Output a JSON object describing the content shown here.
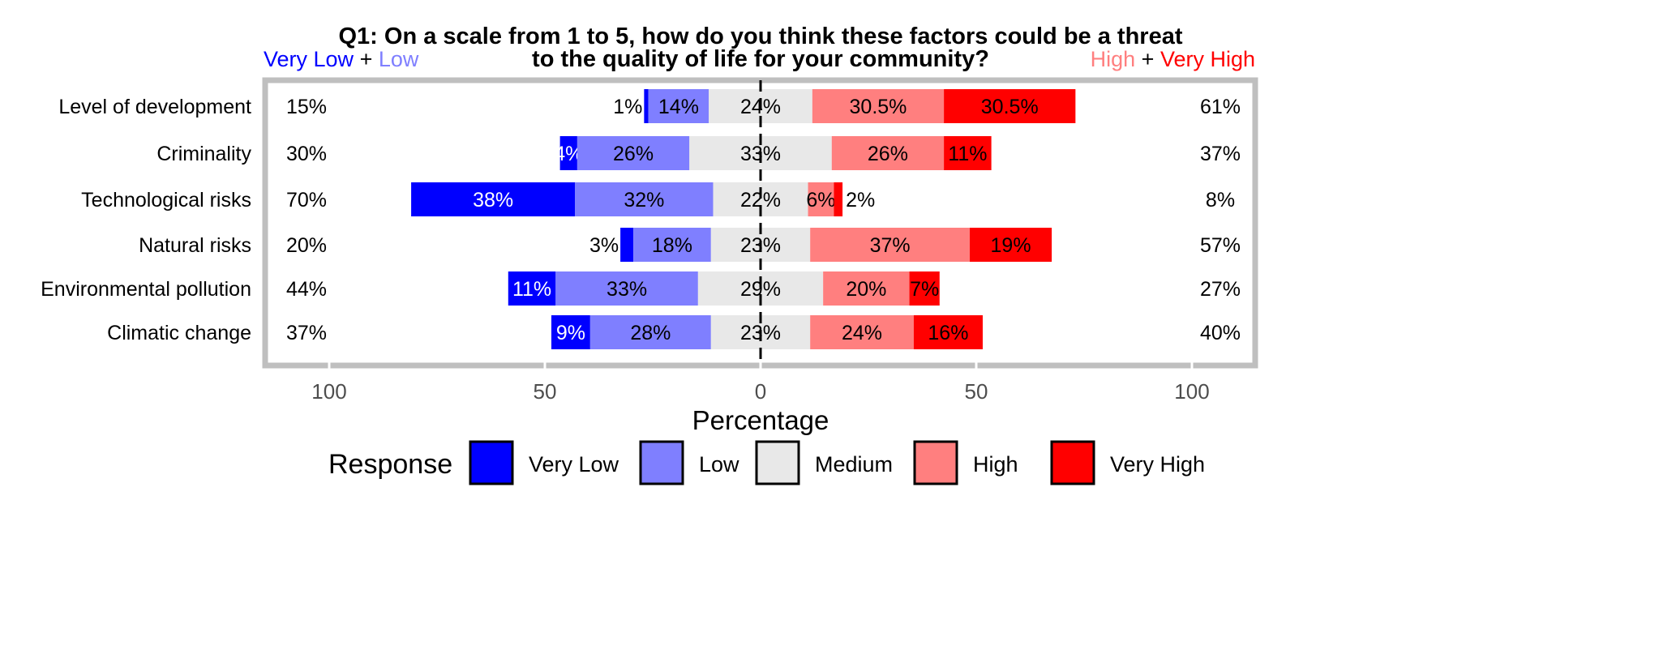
{
  "chart_data": {
    "type": "bar",
    "orientation": "horizontal",
    "stacking": "diverging",
    "title": "Q1: On a scale from 1 to 5, how do you think these factors could be a threat to the quality of life for your community?",
    "title_lines": [
      "Q1: On a scale from 1 to 5, how do you think these factors could be a threat",
      "to the quality of life for your community?"
    ],
    "xlabel": "Percentage",
    "xlim": [
      -100,
      100
    ],
    "x_ticks": [
      -100,
      -50,
      0,
      50,
      100
    ],
    "x_tick_labels": [
      "100",
      "50",
      "0",
      "50",
      "100"
    ],
    "grid": false,
    "left_header": {
      "very_low": "Very Low",
      "plus": "+",
      "low": "Low"
    },
    "right_header": {
      "high": "High",
      "plus": "+",
      "very_high": "Very High"
    },
    "legend": {
      "title": "Response",
      "placement": "bottom",
      "items": [
        "Very Low",
        "Low",
        "Medium",
        "High",
        "Very High"
      ]
    },
    "colors": {
      "Very Low": "#0000ff",
      "Low": "#7f7fff",
      "Medium": "#e8e8e8",
      "High": "#ff7f7f",
      "Very High": "#ff0000"
    },
    "categories": [
      "Level of development",
      "Criminality",
      "Technological risks",
      "Natural risks",
      "Environmental pollution",
      "Climatic change"
    ],
    "series": [
      {
        "name": "Very Low",
        "values": [
          1,
          4,
          38,
          3,
          11,
          9
        ],
        "labels": [
          "1%",
          "4%",
          "38%",
          "3%",
          "11%",
          "9%"
        ]
      },
      {
        "name": "Low",
        "values": [
          14,
          26,
          32,
          18,
          33,
          28
        ],
        "labels": [
          "14%",
          "26%",
          "32%",
          "18%",
          "33%",
          "28%"
        ]
      },
      {
        "name": "Medium",
        "values": [
          24,
          33,
          22,
          23,
          29,
          23
        ],
        "labels": [
          "24%",
          "33%",
          "22%",
          "23%",
          "29%",
          "23%"
        ]
      },
      {
        "name": "High",
        "values": [
          30.5,
          26,
          6,
          37,
          20,
          24
        ],
        "labels": [
          "30.5%",
          "26%",
          "6%",
          "37%",
          "20%",
          "24%"
        ]
      },
      {
        "name": "Very High",
        "values": [
          30.5,
          11,
          2,
          19,
          7,
          16
        ],
        "labels": [
          "30.5%",
          "11%",
          "2%",
          "19%",
          "7%",
          "16%"
        ]
      }
    ],
    "left_totals": [
      "15%",
      "30%",
      "70%",
      "20%",
      "44%",
      "37%"
    ],
    "right_totals": [
      "61%",
      "37%",
      "8%",
      "57%",
      "27%",
      "40%"
    ]
  }
}
